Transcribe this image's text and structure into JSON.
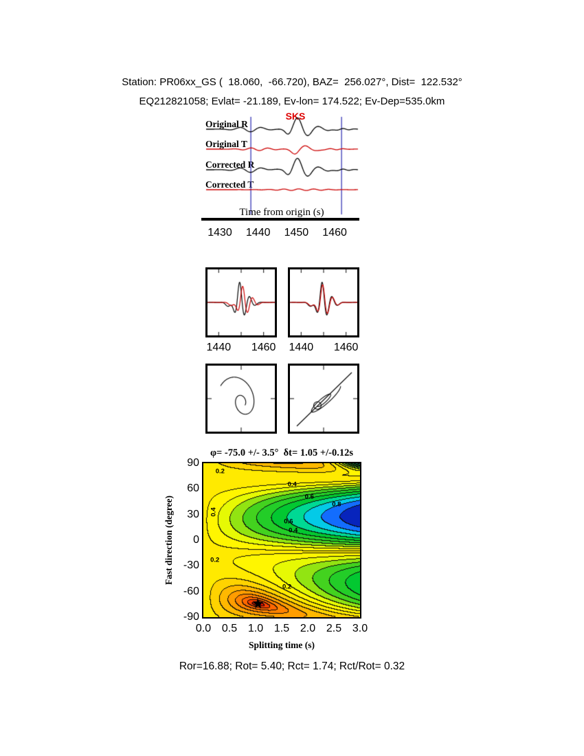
{
  "page": {
    "background": "#ffffff"
  },
  "header": {
    "line1": "Station: PR06xx_GS (  18.060,  -66.720), BAZ=  256.027°, Dist=  122.532°",
    "line2": "EQ212821058; Evlat= -21.189, Ev-lon= 174.522; Ev-Dep=535.0km"
  },
  "footer": {
    "stats": "Ror=16.88; Rot= 5.40; Rct= 1.74; Rct/Rot= 0.32"
  },
  "chart_data": [
    {
      "id": "seismogram-traces",
      "type": "line",
      "x_label": "Time from origin (s)",
      "x_ticks": [
        "1430",
        "1440",
        "1450",
        "1460"
      ],
      "x_range": [
        1426.4,
        1466.1
      ],
      "series": [
        {
          "name": "Original R",
          "color": "#000000"
        },
        {
          "name": "Original T",
          "color": "#cc0000"
        },
        {
          "name": "Corrected R",
          "color": "#000000"
        },
        {
          "name": "Corrected T",
          "color": "#cc0000"
        }
      ],
      "phase_marker": {
        "label": "SKS",
        "time_s": 1450,
        "color": "#dd0000"
      },
      "analysis_window": {
        "start_s": 1438.1,
        "end_s": 1461.8,
        "color": "#4444bb"
      }
    },
    {
      "id": "fast-slow-waveform-panels",
      "type": "line",
      "panels": [
        {
          "x_ticks": [
            "1440",
            "1460"
          ],
          "x_range": [
            1435,
            1465
          ],
          "series_colors": [
            "#000000",
            "#cc0000"
          ]
        },
        {
          "x_ticks": [
            "1440",
            "1460"
          ],
          "x_range": [
            1435,
            1465
          ],
          "series_colors": [
            "#000000",
            "#cc0000"
          ]
        }
      ]
    },
    {
      "id": "particle-motion-panels",
      "type": "scatter",
      "panels": [
        {
          "trace_color": "#000000"
        },
        {
          "trace_color": "#000000"
        }
      ]
    },
    {
      "id": "splitting-misfit-surface",
      "type": "heatmap",
      "title": "φ= -75.0 +/- 3.5°  δt= 1.05 +/-0.12s",
      "xlabel": "Splitting time (s)",
      "ylabel": "Fast direction (degree)",
      "x_ticks": [
        "0.0",
        "0.5",
        "1.0",
        "1.5",
        "2.0",
        "2.5",
        "3.0"
      ],
      "y_ticks": [
        "90",
        "60",
        "30",
        "0",
        "-30",
        "-60",
        "-90"
      ],
      "x_range": [
        0,
        3
      ],
      "y_range": [
        -90,
        90
      ],
      "best_fit": {
        "fast_direction_deg": -75.0,
        "fast_direction_err_deg": 3.5,
        "delay_time_s": 1.05,
        "delay_time_err_s": 0.12
      },
      "star_marker": {
        "x": 1.05,
        "y": -75,
        "color": "#000000",
        "symbol": "star"
      },
      "contour_interval": 0.05,
      "contour_labels": [
        {
          "text": "0.2",
          "x": 0.32,
          "y": 80
        },
        {
          "text": "0.4",
          "x": 1.7,
          "y": 65
        },
        {
          "text": "0.6",
          "x": 2.03,
          "y": 51
        },
        {
          "text": "0.8",
          "x": 2.55,
          "y": 42
        },
        {
          "text": "0.4",
          "x": 0.2,
          "y": 33,
          "rot": -90
        },
        {
          "text": "0.6",
          "x": 1.63,
          "y": 22
        },
        {
          "text": "0.4",
          "x": 1.72,
          "y": 11
        },
        {
          "text": "0.2",
          "x": 0.22,
          "y": -23
        },
        {
          "text": "0.2",
          "x": 1.6,
          "y": -55
        }
      ],
      "palette_low_to_high": [
        "#8b0000",
        "#e60000",
        "#ff6400",
        "#ffa500",
        "#ffe600",
        "#ffff00",
        "#46d21e",
        "#00c832",
        "#00e6e0",
        "#1464ff",
        "#000096"
      ]
    }
  ]
}
